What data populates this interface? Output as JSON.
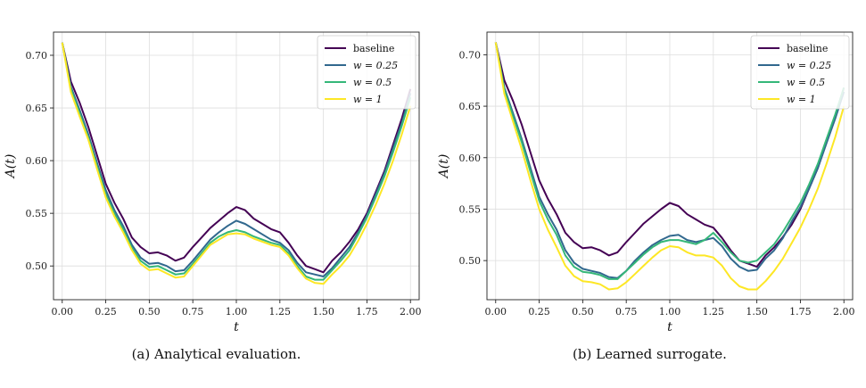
{
  "chart_data": [
    {
      "type": "line",
      "caption": "(a) Analytical evaluation.",
      "xlabel": "t",
      "ylabel": "A(t)",
      "xlim": [
        -0.05,
        2.05
      ],
      "ylim": [
        0.468,
        0.722
      ],
      "xticks": [
        "0.00",
        "0.25",
        "0.50",
        "0.75",
        "1.00",
        "1.25",
        "1.50",
        "1.75",
        "2.00"
      ],
      "yticks": [
        "0.50",
        "0.55",
        "0.60",
        "0.65",
        "0.70"
      ],
      "grid": true,
      "legend_position": "top-right",
      "x": [
        0.0,
        0.05,
        0.1,
        0.15,
        0.2,
        0.25,
        0.3,
        0.35,
        0.4,
        0.45,
        0.5,
        0.55,
        0.6,
        0.65,
        0.7,
        0.75,
        0.8,
        0.85,
        0.9,
        0.95,
        1.0,
        1.05,
        1.1,
        1.15,
        1.2,
        1.25,
        1.3,
        1.35,
        1.4,
        1.45,
        1.5,
        1.55,
        1.6,
        1.65,
        1.7,
        1.75,
        1.8,
        1.85,
        1.9,
        1.95,
        2.0
      ],
      "series": [
        {
          "name": "baseline",
          "color": "#440154",
          "values": [
            0.712,
            0.675,
            0.655,
            0.632,
            0.605,
            0.578,
            0.56,
            0.545,
            0.527,
            0.518,
            0.512,
            0.513,
            0.51,
            0.505,
            0.508,
            0.518,
            0.527,
            0.536,
            0.543,
            0.55,
            0.556,
            0.553,
            0.545,
            0.54,
            0.535,
            0.532,
            0.522,
            0.51,
            0.5,
            0.497,
            0.494,
            0.505,
            0.513,
            0.523,
            0.535,
            0.55,
            0.57,
            0.59,
            0.615,
            0.64,
            0.668
          ]
        },
        {
          "name": "w = 0.25",
          "color": "#31688e",
          "values": [
            0.712,
            0.67,
            0.648,
            0.625,
            0.598,
            0.572,
            0.553,
            0.538,
            0.52,
            0.508,
            0.502,
            0.503,
            0.5,
            0.495,
            0.496,
            0.505,
            0.515,
            0.525,
            0.532,
            0.538,
            0.543,
            0.54,
            0.535,
            0.53,
            0.525,
            0.522,
            0.515,
            0.503,
            0.494,
            0.492,
            0.49,
            0.498,
            0.508,
            0.518,
            0.532,
            0.548,
            0.568,
            0.588,
            0.612,
            0.636,
            0.664
          ]
        },
        {
          "name": "w = 0.5",
          "color": "#35b779",
          "values": [
            0.712,
            0.668,
            0.645,
            0.622,
            0.595,
            0.568,
            0.55,
            0.535,
            0.517,
            0.505,
            0.499,
            0.5,
            0.496,
            0.492,
            0.493,
            0.502,
            0.512,
            0.522,
            0.528,
            0.532,
            0.534,
            0.532,
            0.528,
            0.525,
            0.522,
            0.52,
            0.512,
            0.5,
            0.49,
            0.487,
            0.487,
            0.496,
            0.505,
            0.515,
            0.53,
            0.546,
            0.565,
            0.585,
            0.608,
            0.633,
            0.66
          ]
        },
        {
          "name": "w = 1",
          "color": "#fde725",
          "values": [
            0.712,
            0.665,
            0.642,
            0.62,
            0.592,
            0.565,
            0.547,
            0.532,
            0.515,
            0.502,
            0.496,
            0.497,
            0.493,
            0.489,
            0.49,
            0.5,
            0.51,
            0.52,
            0.525,
            0.53,
            0.531,
            0.53,
            0.526,
            0.523,
            0.52,
            0.518,
            0.51,
            0.498,
            0.488,
            0.484,
            0.483,
            0.492,
            0.5,
            0.51,
            0.524,
            0.54,
            0.558,
            0.578,
            0.6,
            0.625,
            0.652
          ]
        }
      ]
    },
    {
      "type": "line",
      "caption": "(b) Learned surrogate.",
      "xlabel": "t",
      "ylabel": "A(t)",
      "xlim": [
        -0.05,
        2.05
      ],
      "ylim": [
        0.462,
        0.722
      ],
      "xticks": [
        "0.00",
        "0.25",
        "0.50",
        "0.75",
        "1.00",
        "1.25",
        "1.50",
        "1.75",
        "2.00"
      ],
      "yticks": [
        "0.50",
        "0.55",
        "0.60",
        "0.65",
        "0.70"
      ],
      "grid": true,
      "legend_position": "top-right",
      "x": [
        0.0,
        0.05,
        0.1,
        0.15,
        0.2,
        0.25,
        0.3,
        0.35,
        0.4,
        0.45,
        0.5,
        0.55,
        0.6,
        0.65,
        0.7,
        0.75,
        0.8,
        0.85,
        0.9,
        0.95,
        1.0,
        1.05,
        1.1,
        1.15,
        1.2,
        1.25,
        1.3,
        1.35,
        1.4,
        1.45,
        1.5,
        1.55,
        1.6,
        1.65,
        1.7,
        1.75,
        1.8,
        1.85,
        1.9,
        1.95,
        2.0
      ],
      "series": [
        {
          "name": "baseline",
          "color": "#440154",
          "values": [
            0.712,
            0.675,
            0.655,
            0.632,
            0.605,
            0.578,
            0.56,
            0.545,
            0.527,
            0.518,
            0.512,
            0.513,
            0.51,
            0.505,
            0.508,
            0.518,
            0.527,
            0.536,
            0.543,
            0.55,
            0.556,
            0.553,
            0.545,
            0.54,
            0.535,
            0.532,
            0.522,
            0.51,
            0.5,
            0.497,
            0.494,
            0.505,
            0.513,
            0.523,
            0.535,
            0.55,
            0.57,
            0.59,
            0.615,
            0.64,
            0.668
          ]
        },
        {
          "name": "w = 0.25",
          "color": "#31688e",
          "values": [
            0.712,
            0.668,
            0.643,
            0.618,
            0.59,
            0.562,
            0.545,
            0.53,
            0.51,
            0.498,
            0.492,
            0.49,
            0.488,
            0.484,
            0.483,
            0.49,
            0.5,
            0.508,
            0.515,
            0.52,
            0.524,
            0.525,
            0.52,
            0.518,
            0.52,
            0.522,
            0.514,
            0.502,
            0.494,
            0.49,
            0.491,
            0.502,
            0.51,
            0.522,
            0.538,
            0.552,
            0.57,
            0.59,
            0.614,
            0.638,
            0.664
          ]
        },
        {
          "name": "w = 0.5",
          "color": "#35b779",
          "values": [
            0.712,
            0.666,
            0.64,
            0.615,
            0.586,
            0.558,
            0.54,
            0.525,
            0.505,
            0.494,
            0.489,
            0.488,
            0.486,
            0.482,
            0.482,
            0.49,
            0.498,
            0.506,
            0.513,
            0.518,
            0.52,
            0.52,
            0.518,
            0.516,
            0.52,
            0.527,
            0.518,
            0.508,
            0.5,
            0.498,
            0.5,
            0.508,
            0.516,
            0.528,
            0.542,
            0.556,
            0.574,
            0.594,
            0.618,
            0.642,
            0.668
          ]
        },
        {
          "name": "w = 1",
          "color": "#fde725",
          "values": [
            0.712,
            0.662,
            0.635,
            0.608,
            0.578,
            0.55,
            0.53,
            0.513,
            0.495,
            0.485,
            0.48,
            0.479,
            0.477,
            0.472,
            0.473,
            0.479,
            0.487,
            0.495,
            0.503,
            0.51,
            0.514,
            0.513,
            0.508,
            0.505,
            0.505,
            0.503,
            0.495,
            0.483,
            0.475,
            0.472,
            0.472,
            0.48,
            0.49,
            0.502,
            0.517,
            0.532,
            0.55,
            0.57,
            0.594,
            0.62,
            0.65
          ]
        }
      ]
    }
  ]
}
